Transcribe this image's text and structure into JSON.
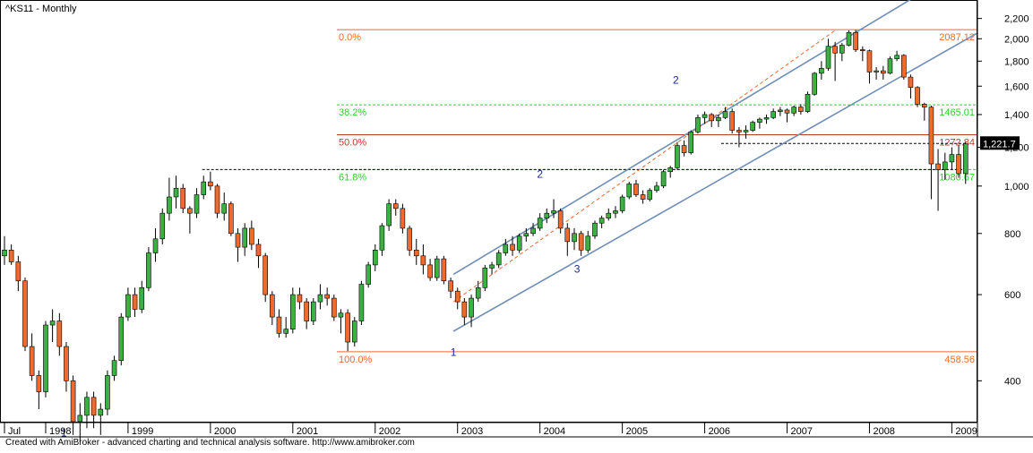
{
  "window": {
    "title": "^KS11 - Monthly",
    "footer": "Created with AmiBroker - advanced charting and technical analysis software. http://www.amibroker.com"
  },
  "colors": {
    "up": "#3cb043",
    "down": "#ee6a2f",
    "wick": "#000000",
    "channel": "#6f8fb8",
    "fib_orange": "#ee6a2f",
    "fib_green": "#33cc33",
    "fib_red": "#c0392b"
  },
  "chart_data": {
    "type": "candlestick",
    "title": "^KS11 - Monthly",
    "y_scale": "log",
    "ylim": [
      330,
      2400
    ],
    "x_start": 1997.5,
    "x_end": 2009.3,
    "y_ticks": [
      400,
      600,
      800,
      "1,000",
      "1,200",
      "1,400",
      "1,600",
      "1,800",
      "2,000",
      "2,200"
    ],
    "y_tick_values": [
      400,
      600,
      800,
      1000,
      1200,
      1400,
      1600,
      1800,
      2000,
      2200
    ],
    "x_ticks": [
      "Jul",
      "1998",
      "1999",
      "2000",
      "2001",
      "2002",
      "2003",
      "2004",
      "2005",
      "2006",
      "2007",
      "2008",
      "2009"
    ],
    "x_tick_values": [
      1997.5,
      1998.0,
      1999.0,
      2000.0,
      2001.0,
      2002.0,
      2003.0,
      2004.0,
      2005.0,
      2006.0,
      2007.0,
      2008.0,
      2009.0
    ],
    "last_price": "1,221.7",
    "last_price_value": 1221.7,
    "fib_levels": [
      {
        "label": "0.0%",
        "value_label": "2087.12",
        "value": 2087.12,
        "color": "#ee6a2f"
      },
      {
        "label": "38.2%",
        "value_label": "1465.01",
        "value": 1465.01,
        "color": "#33cc33"
      },
      {
        "label": "50.0%",
        "value_label": "1272.84",
        "value": 1272.84,
        "color": "#c0392b"
      },
      {
        "label": "61.8%",
        "value_label": "1080.67",
        "value": 1080.67,
        "color": "#33cc33"
      },
      {
        "label": "100.0%",
        "value_label": "458.56",
        "value": 458.56,
        "color": "#ee6a2f"
      }
    ],
    "wave_labels": [
      {
        "text": "1",
        "x": 2002.95,
        "y": 450
      },
      {
        "text": "1",
        "x": 1998.22,
        "y": 308
      },
      {
        "text": "2",
        "x": 2004.0,
        "y": 1040
      },
      {
        "text": "3",
        "x": 2004.45,
        "y": 665
      },
      {
        "text": "2",
        "x": 2005.65,
        "y": 1620
      }
    ],
    "channel_lines": [
      {
        "x1": 2002.95,
        "y1": 660,
        "x2": 2009.3,
        "y2": 2900
      },
      {
        "x1": 2002.95,
        "y1": 505,
        "x2": 2009.3,
        "y2": 2050
      },
      {
        "x1": 2002.95,
        "y1": 580,
        "x2": 2007.6,
        "y2": 2090,
        "dashed": true
      }
    ],
    "dashed_levels": [
      {
        "value": 1080.67,
        "x_from": 1999.9,
        "x_to": 2009.15
      },
      {
        "value": 1221.7,
        "x_from": 2006.2,
        "x_to": 2009.15
      }
    ],
    "candles": [
      {
        "t": 1997.5,
        "o": 720,
        "h": 790,
        "l": 690,
        "c": 740
      },
      {
        "t": 1997.583,
        "o": 740,
        "h": 760,
        "l": 690,
        "c": 700
      },
      {
        "t": 1997.667,
        "o": 700,
        "h": 720,
        "l": 610,
        "c": 640
      },
      {
        "t": 1997.75,
        "o": 640,
        "h": 650,
        "l": 460,
        "c": 470
      },
      {
        "t": 1997.833,
        "o": 470,
        "h": 500,
        "l": 400,
        "c": 410
      },
      {
        "t": 1997.917,
        "o": 410,
        "h": 420,
        "l": 350,
        "c": 380
      },
      {
        "t": 1998.0,
        "o": 380,
        "h": 530,
        "l": 370,
        "c": 520
      },
      {
        "t": 1998.083,
        "o": 520,
        "h": 560,
        "l": 480,
        "c": 530
      },
      {
        "t": 1998.167,
        "o": 530,
        "h": 550,
        "l": 450,
        "c": 470
      },
      {
        "t": 1998.25,
        "o": 470,
        "h": 480,
        "l": 380,
        "c": 400
      },
      {
        "t": 1998.333,
        "o": 400,
        "h": 410,
        "l": 310,
        "c": 330
      },
      {
        "t": 1998.417,
        "o": 330,
        "h": 360,
        "l": 300,
        "c": 340
      },
      {
        "t": 1998.5,
        "o": 340,
        "h": 380,
        "l": 320,
        "c": 370
      },
      {
        "t": 1998.583,
        "o": 370,
        "h": 380,
        "l": 320,
        "c": 340
      },
      {
        "t": 1998.667,
        "o": 340,
        "h": 360,
        "l": 310,
        "c": 350
      },
      {
        "t": 1998.75,
        "o": 350,
        "h": 420,
        "l": 340,
        "c": 410
      },
      {
        "t": 1998.833,
        "o": 410,
        "h": 450,
        "l": 400,
        "c": 440
      },
      {
        "t": 1998.917,
        "o": 440,
        "h": 550,
        "l": 430,
        "c": 540
      },
      {
        "t": 1999.0,
        "o": 540,
        "h": 620,
        "l": 530,
        "c": 600
      },
      {
        "t": 1999.083,
        "o": 600,
        "h": 620,
        "l": 540,
        "c": 560
      },
      {
        "t": 1999.167,
        "o": 560,
        "h": 640,
        "l": 550,
        "c": 620
      },
      {
        "t": 1999.25,
        "o": 620,
        "h": 750,
        "l": 610,
        "c": 730
      },
      {
        "t": 1999.333,
        "o": 730,
        "h": 820,
        "l": 700,
        "c": 780
      },
      {
        "t": 1999.417,
        "o": 780,
        "h": 900,
        "l": 760,
        "c": 880
      },
      {
        "t": 1999.5,
        "o": 880,
        "h": 1040,
        "l": 850,
        "c": 950
      },
      {
        "t": 1999.583,
        "o": 950,
        "h": 1050,
        "l": 900,
        "c": 990
      },
      {
        "t": 1999.667,
        "o": 990,
        "h": 1010,
        "l": 880,
        "c": 900
      },
      {
        "t": 1999.75,
        "o": 900,
        "h": 910,
        "l": 800,
        "c": 880
      },
      {
        "t": 1999.833,
        "o": 880,
        "h": 990,
        "l": 860,
        "c": 960
      },
      {
        "t": 1999.917,
        "o": 960,
        "h": 1050,
        "l": 940,
        "c": 1020
      },
      {
        "t": 2000.0,
        "o": 1020,
        "h": 1070,
        "l": 980,
        "c": 1000
      },
      {
        "t": 2000.083,
        "o": 1000,
        "h": 1010,
        "l": 860,
        "c": 880
      },
      {
        "t": 2000.167,
        "o": 880,
        "h": 970,
        "l": 850,
        "c": 920
      },
      {
        "t": 2000.25,
        "o": 920,
        "h": 930,
        "l": 790,
        "c": 800
      },
      {
        "t": 2000.333,
        "o": 800,
        "h": 820,
        "l": 700,
        "c": 750
      },
      {
        "t": 2000.417,
        "o": 750,
        "h": 840,
        "l": 720,
        "c": 820
      },
      {
        "t": 2000.5,
        "o": 820,
        "h": 850,
        "l": 740,
        "c": 760
      },
      {
        "t": 2000.583,
        "o": 760,
        "h": 780,
        "l": 680,
        "c": 720
      },
      {
        "t": 2000.667,
        "o": 720,
        "h": 730,
        "l": 580,
        "c": 600
      },
      {
        "t": 2000.75,
        "o": 600,
        "h": 610,
        "l": 520,
        "c": 540
      },
      {
        "t": 2000.833,
        "o": 540,
        "h": 560,
        "l": 490,
        "c": 500
      },
      {
        "t": 2000.917,
        "o": 500,
        "h": 540,
        "l": 490,
        "c": 510
      },
      {
        "t": 2001.0,
        "o": 510,
        "h": 620,
        "l": 500,
        "c": 600
      },
      {
        "t": 2001.083,
        "o": 600,
        "h": 620,
        "l": 560,
        "c": 580
      },
      {
        "t": 2001.167,
        "o": 580,
        "h": 590,
        "l": 510,
        "c": 530
      },
      {
        "t": 2001.25,
        "o": 530,
        "h": 590,
        "l": 520,
        "c": 580
      },
      {
        "t": 2001.333,
        "o": 580,
        "h": 630,
        "l": 560,
        "c": 600
      },
      {
        "t": 2001.417,
        "o": 600,
        "h": 620,
        "l": 570,
        "c": 590
      },
      {
        "t": 2001.5,
        "o": 590,
        "h": 600,
        "l": 530,
        "c": 540
      },
      {
        "t": 2001.583,
        "o": 540,
        "h": 560,
        "l": 500,
        "c": 550
      },
      {
        "t": 2001.667,
        "o": 550,
        "h": 560,
        "l": 460,
        "c": 480
      },
      {
        "t": 2001.75,
        "o": 480,
        "h": 540,
        "l": 470,
        "c": 530
      },
      {
        "t": 2001.833,
        "o": 530,
        "h": 640,
        "l": 520,
        "c": 630
      },
      {
        "t": 2001.917,
        "o": 630,
        "h": 700,
        "l": 620,
        "c": 690
      },
      {
        "t": 2002.0,
        "o": 690,
        "h": 760,
        "l": 670,
        "c": 740
      },
      {
        "t": 2002.083,
        "o": 740,
        "h": 840,
        "l": 720,
        "c": 830
      },
      {
        "t": 2002.167,
        "o": 830,
        "h": 940,
        "l": 810,
        "c": 920
      },
      {
        "t": 2002.25,
        "o": 920,
        "h": 940,
        "l": 870,
        "c": 900
      },
      {
        "t": 2002.333,
        "o": 900,
        "h": 920,
        "l": 800,
        "c": 820
      },
      {
        "t": 2002.417,
        "o": 820,
        "h": 830,
        "l": 720,
        "c": 740
      },
      {
        "t": 2002.5,
        "o": 740,
        "h": 780,
        "l": 690,
        "c": 720
      },
      {
        "t": 2002.583,
        "o": 720,
        "h": 760,
        "l": 660,
        "c": 690
      },
      {
        "t": 2002.667,
        "o": 690,
        "h": 710,
        "l": 640,
        "c": 650
      },
      {
        "t": 2002.75,
        "o": 650,
        "h": 720,
        "l": 640,
        "c": 710
      },
      {
        "t": 2002.833,
        "o": 710,
        "h": 720,
        "l": 630,
        "c": 640
      },
      {
        "t": 2002.917,
        "o": 640,
        "h": 650,
        "l": 590,
        "c": 610
      },
      {
        "t": 2003.0,
        "o": 610,
        "h": 620,
        "l": 560,
        "c": 580
      },
      {
        "t": 2003.083,
        "o": 580,
        "h": 590,
        "l": 520,
        "c": 540
      },
      {
        "t": 2003.167,
        "o": 540,
        "h": 600,
        "l": 515,
        "c": 590
      },
      {
        "t": 2003.25,
        "o": 590,
        "h": 640,
        "l": 580,
        "c": 620
      },
      {
        "t": 2003.333,
        "o": 620,
        "h": 690,
        "l": 610,
        "c": 680
      },
      {
        "t": 2003.417,
        "o": 680,
        "h": 700,
        "l": 660,
        "c": 690
      },
      {
        "t": 2003.5,
        "o": 690,
        "h": 740,
        "l": 680,
        "c": 730
      },
      {
        "t": 2003.583,
        "o": 730,
        "h": 780,
        "l": 720,
        "c": 760
      },
      {
        "t": 2003.667,
        "o": 760,
        "h": 790,
        "l": 720,
        "c": 740
      },
      {
        "t": 2003.75,
        "o": 740,
        "h": 800,
        "l": 730,
        "c": 790
      },
      {
        "t": 2003.833,
        "o": 790,
        "h": 820,
        "l": 770,
        "c": 800
      },
      {
        "t": 2003.917,
        "o": 800,
        "h": 840,
        "l": 790,
        "c": 820
      },
      {
        "t": 2004.0,
        "o": 820,
        "h": 880,
        "l": 810,
        "c": 860
      },
      {
        "t": 2004.083,
        "o": 860,
        "h": 900,
        "l": 840,
        "c": 880
      },
      {
        "t": 2004.167,
        "o": 880,
        "h": 940,
        "l": 860,
        "c": 890
      },
      {
        "t": 2004.25,
        "o": 890,
        "h": 900,
        "l": 800,
        "c": 820
      },
      {
        "t": 2004.333,
        "o": 820,
        "h": 840,
        "l": 720,
        "c": 770
      },
      {
        "t": 2004.417,
        "o": 770,
        "h": 820,
        "l": 740,
        "c": 800
      },
      {
        "t": 2004.5,
        "o": 800,
        "h": 810,
        "l": 720,
        "c": 740
      },
      {
        "t": 2004.583,
        "o": 740,
        "h": 810,
        "l": 730,
        "c": 790
      },
      {
        "t": 2004.667,
        "o": 790,
        "h": 850,
        "l": 780,
        "c": 840
      },
      {
        "t": 2004.75,
        "o": 840,
        "h": 870,
        "l": 820,
        "c": 860
      },
      {
        "t": 2004.833,
        "o": 860,
        "h": 900,
        "l": 850,
        "c": 880
      },
      {
        "t": 2004.917,
        "o": 880,
        "h": 910,
        "l": 860,
        "c": 890
      },
      {
        "t": 2005.0,
        "o": 890,
        "h": 960,
        "l": 880,
        "c": 950
      },
      {
        "t": 2005.083,
        "o": 950,
        "h": 1020,
        "l": 940,
        "c": 1010
      },
      {
        "t": 2005.167,
        "o": 1010,
        "h": 1030,
        "l": 950,
        "c": 960
      },
      {
        "t": 2005.25,
        "o": 960,
        "h": 980,
        "l": 920,
        "c": 940
      },
      {
        "t": 2005.333,
        "o": 940,
        "h": 990,
        "l": 930,
        "c": 980
      },
      {
        "t": 2005.417,
        "o": 980,
        "h": 1020,
        "l": 970,
        "c": 1000
      },
      {
        "t": 2005.5,
        "o": 1000,
        "h": 1080,
        "l": 990,
        "c": 1070
      },
      {
        "t": 2005.583,
        "o": 1070,
        "h": 1100,
        "l": 1040,
        "c": 1090
      },
      {
        "t": 2005.667,
        "o": 1090,
        "h": 1230,
        "l": 1080,
        "c": 1210
      },
      {
        "t": 2005.75,
        "o": 1210,
        "h": 1240,
        "l": 1150,
        "c": 1170
      },
      {
        "t": 2005.833,
        "o": 1170,
        "h": 1300,
        "l": 1160,
        "c": 1290
      },
      {
        "t": 2005.917,
        "o": 1290,
        "h": 1400,
        "l": 1280,
        "c": 1380
      },
      {
        "t": 2006.0,
        "o": 1380,
        "h": 1420,
        "l": 1340,
        "c": 1400
      },
      {
        "t": 2006.083,
        "o": 1400,
        "h": 1410,
        "l": 1320,
        "c": 1360
      },
      {
        "t": 2006.167,
        "o": 1360,
        "h": 1400,
        "l": 1320,
        "c": 1380
      },
      {
        "t": 2006.25,
        "o": 1380,
        "h": 1450,
        "l": 1370,
        "c": 1420
      },
      {
        "t": 2006.333,
        "o": 1420,
        "h": 1440,
        "l": 1280,
        "c": 1300
      },
      {
        "t": 2006.417,
        "o": 1300,
        "h": 1320,
        "l": 1200,
        "c": 1290
      },
      {
        "t": 2006.5,
        "o": 1290,
        "h": 1330,
        "l": 1250,
        "c": 1300
      },
      {
        "t": 2006.583,
        "o": 1300,
        "h": 1360,
        "l": 1290,
        "c": 1350
      },
      {
        "t": 2006.667,
        "o": 1350,
        "h": 1380,
        "l": 1310,
        "c": 1370
      },
      {
        "t": 2006.75,
        "o": 1370,
        "h": 1400,
        "l": 1340,
        "c": 1380
      },
      {
        "t": 2006.833,
        "o": 1380,
        "h": 1440,
        "l": 1370,
        "c": 1420
      },
      {
        "t": 2006.917,
        "o": 1420,
        "h": 1450,
        "l": 1390,
        "c": 1430
      },
      {
        "t": 2007.0,
        "o": 1430,
        "h": 1440,
        "l": 1350,
        "c": 1410
      },
      {
        "t": 2007.083,
        "o": 1410,
        "h": 1460,
        "l": 1390,
        "c": 1450
      },
      {
        "t": 2007.167,
        "o": 1450,
        "h": 1470,
        "l": 1400,
        "c": 1420
      },
      {
        "t": 2007.25,
        "o": 1420,
        "h": 1560,
        "l": 1410,
        "c": 1540
      },
      {
        "t": 2007.333,
        "o": 1540,
        "h": 1710,
        "l": 1530,
        "c": 1700
      },
      {
        "t": 2007.417,
        "o": 1700,
        "h": 1800,
        "l": 1650,
        "c": 1740
      },
      {
        "t": 2007.5,
        "o": 1740,
        "h": 2000,
        "l": 1720,
        "c": 1930
      },
      {
        "t": 2007.583,
        "o": 1930,
        "h": 1970,
        "l": 1640,
        "c": 1870
      },
      {
        "t": 2007.667,
        "o": 1870,
        "h": 1960,
        "l": 1800,
        "c": 1940
      },
      {
        "t": 2007.75,
        "o": 1940,
        "h": 2080,
        "l": 1930,
        "c": 2060
      },
      {
        "t": 2007.833,
        "o": 2060,
        "h": 2085,
        "l": 1880,
        "c": 1900
      },
      {
        "t": 2007.917,
        "o": 1900,
        "h": 1930,
        "l": 1800,
        "c": 1890
      },
      {
        "t": 2008.0,
        "o": 1890,
        "h": 1900,
        "l": 1620,
        "c": 1710
      },
      {
        "t": 2008.083,
        "o": 1710,
        "h": 1750,
        "l": 1650,
        "c": 1720
      },
      {
        "t": 2008.167,
        "o": 1720,
        "h": 1760,
        "l": 1650,
        "c": 1700
      },
      {
        "t": 2008.25,
        "o": 1700,
        "h": 1840,
        "l": 1690,
        "c": 1820
      },
      {
        "t": 2008.333,
        "o": 1820,
        "h": 1890,
        "l": 1800,
        "c": 1850
      },
      {
        "t": 2008.417,
        "o": 1850,
        "h": 1860,
        "l": 1650,
        "c": 1670
      },
      {
        "t": 2008.5,
        "o": 1670,
        "h": 1690,
        "l": 1510,
        "c": 1590
      },
      {
        "t": 2008.583,
        "o": 1590,
        "h": 1600,
        "l": 1450,
        "c": 1470
      },
      {
        "t": 2008.667,
        "o": 1470,
        "h": 1480,
        "l": 1360,
        "c": 1450
      },
      {
        "t": 2008.75,
        "o": 1450,
        "h": 1460,
        "l": 940,
        "c": 1110
      },
      {
        "t": 2008.833,
        "o": 1110,
        "h": 1190,
        "l": 890,
        "c": 1080
      },
      {
        "t": 2008.917,
        "o": 1080,
        "h": 1170,
        "l": 1030,
        "c": 1120
      },
      {
        "t": 2009.0,
        "o": 1120,
        "h": 1200,
        "l": 1080,
        "c": 1160
      },
      {
        "t": 2009.083,
        "o": 1160,
        "h": 1210,
        "l": 1040,
        "c": 1060
      },
      {
        "t": 2009.167,
        "o": 1060,
        "h": 1230,
        "l": 1010,
        "c": 1220
      }
    ]
  }
}
